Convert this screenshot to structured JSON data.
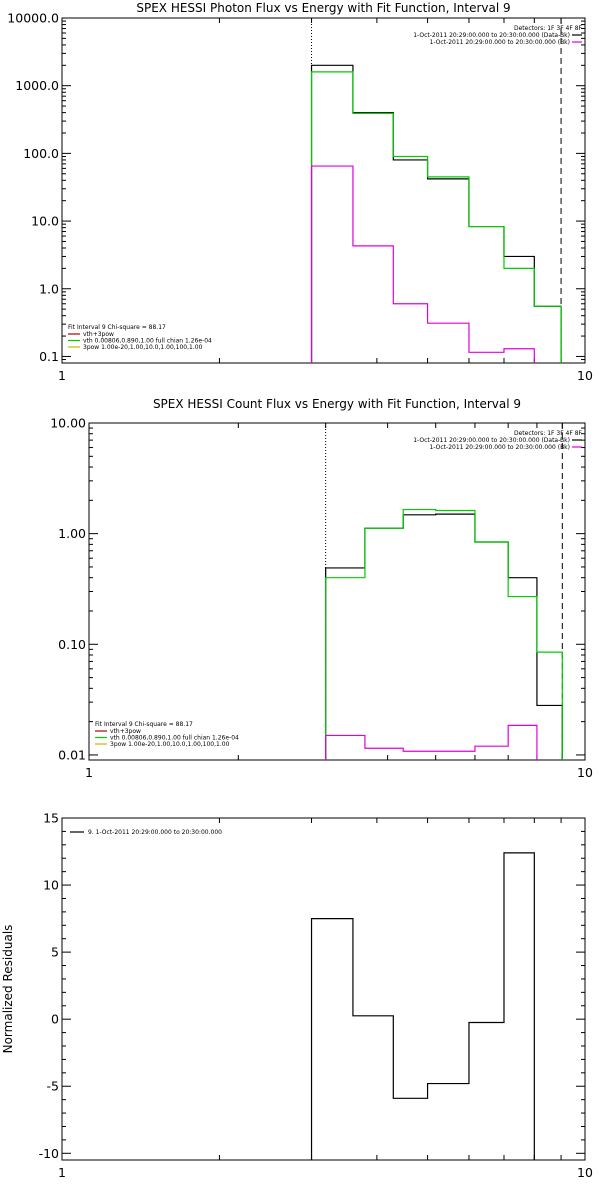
{
  "chart_data": [
    {
      "type": "line",
      "title": "SPEX HESSI Photon Flux vs Energy with Fit Function, Interval 9",
      "xlabel": "",
      "ylabel": "",
      "xscale": "log",
      "yscale": "log",
      "xlim": [
        1,
        10
      ],
      "ylim": [
        0.08,
        10000
      ],
      "xticks": [
        1,
        10
      ],
      "xtick_labels": [
        "1",
        "10"
      ],
      "yticks": [
        0.1,
        1,
        10,
        100,
        1000,
        10000
      ],
      "ytick_labels": [
        "0.1",
        "1.0",
        "10.0",
        "100.0",
        "1000.0",
        "10000.0"
      ],
      "vlines": [
        {
          "x": 3.0,
          "style": "dotted"
        },
        {
          "x": 9.0,
          "style": "dashed"
        }
      ],
      "legend_header": "Detectors: 1F 3F 4F 8F",
      "legend": [
        {
          "label": "1-Oct-2011 20:29:00.000 to 20:30:00.000 (Data-Bk)",
          "color": "#000000"
        },
        {
          "label": "1-Oct-2011 20:29:00.000 to 20:30:00.000 (Bk)",
          "color": "#e000e0"
        }
      ],
      "fit_header": "Fit Interval 9   Chi-square = 88.17",
      "fit_legend": [
        {
          "label": "vth+3pow",
          "color": "#b00000"
        },
        {
          "label": "vth 0.00806,0.890,1.00  full chian 1.26e-04",
          "color": "#00cc00"
        },
        {
          "label": "3pow 1.00e-20,1.00,10.0,1.00,100,1.00",
          "color": "#d4b000"
        }
      ],
      "edges": [
        3.0,
        3.6,
        4.3,
        5.0,
        6.0,
        7.0,
        8.0,
        9.0,
        10.0
      ],
      "series": [
        {
          "name": "1-Oct-2011 20:29:00.000 to 20:30:00.000 (Data-Bk)",
          "color": "#000000",
          "values": [
            2000,
            400,
            80,
            42,
            8.3,
            3.0,
            0.55
          ]
        },
        {
          "name": "vth 0.00806,0.890,1.00  full chian 1.26e-04",
          "color": "#00cc00",
          "values": [
            1600,
            390,
            90,
            45,
            8.3,
            2.0,
            0.55
          ]
        },
        {
          "name": "1-Oct-2011 20:29:00.000 to 20:30:00.000 (Bk)",
          "color": "#e000e0",
          "values": [
            65,
            4.3,
            0.6,
            0.31,
            0.115,
            0.13
          ]
        }
      ]
    },
    {
      "type": "line",
      "title": "SPEX HESSI Count Flux vs Energy with Fit Function, Interval 9",
      "xlabel": "",
      "ylabel": "",
      "xscale": "log",
      "yscale": "log",
      "xlim": [
        1,
        10
      ],
      "ylim": [
        0.009,
        10
      ],
      "xticks": [
        1,
        10
      ],
      "xtick_labels": [
        "1",
        "10"
      ],
      "yticks": [
        0.01,
        0.1,
        1,
        10
      ],
      "ytick_labels": [
        "0.01",
        "0.10",
        "1.00",
        "10.00"
      ],
      "vlines": [
        {
          "x": 3.0,
          "style": "dotted"
        },
        {
          "x": 9.0,
          "style": "dashed"
        }
      ],
      "legend_header": "Detectors: 1F 3F 4F 8F",
      "legend": [
        {
          "label": "1-Oct-2011 20:29:00.000 to 20:30:00.000 (Data-Bk)",
          "color": "#000000"
        },
        {
          "label": "1-Oct-2011 20:29:00.000 to 20:30:00.000 (Bk)",
          "color": "#e000e0"
        }
      ],
      "fit_header": "Fit Interval 9   Chi-square = 88.17",
      "fit_legend": [
        {
          "label": "vth+3pow",
          "color": "#b00000"
        },
        {
          "label": "vth 0.00806,0.890,1.00  full chian 1.26e-04",
          "color": "#00cc00"
        },
        {
          "label": "3pow 1.00e-20,1.00,10.0,1.00,100,1.00",
          "color": "#d4b000"
        }
      ],
      "edges": [
        3.0,
        3.6,
        4.3,
        5.0,
        6.0,
        7.0,
        8.0,
        9.0,
        10.0
      ],
      "series": [
        {
          "name": "1-Oct-2011 20:29:00.000 to 20:30:00.000 (Data-Bk)",
          "color": "#000000",
          "values": [
            0.49,
            1.12,
            1.48,
            1.5,
            0.84,
            0.4,
            0.028
          ]
        },
        {
          "name": "vth 0.00806,0.890,1.00  full chian 1.26e-04",
          "color": "#00cc00",
          "values": [
            0.4,
            1.12,
            1.65,
            1.62,
            0.84,
            0.27,
            0.085
          ]
        },
        {
          "name": "1-Oct-2011 20:29:00.000 to 20:30:00.000 (Bk)",
          "color": "#e000e0",
          "values": [
            0.015,
            0.0115,
            0.0108,
            0.0108,
            0.012,
            0.0185
          ]
        }
      ]
    },
    {
      "type": "line",
      "title": "",
      "xlabel": "",
      "ylabel": "Normalized Residuals",
      "xscale": "log",
      "yscale": "linear",
      "xlim": [
        1,
        10
      ],
      "ylim": [
        -10.5,
        15
      ],
      "xticks": [
        1,
        10
      ],
      "xtick_labels": [
        "1",
        "10"
      ],
      "yticks": [
        -10,
        -5,
        0,
        5,
        10,
        15
      ],
      "ytick_labels": [
        "-10",
        "-5",
        "0",
        "5",
        "10",
        "15"
      ],
      "legend": [
        {
          "label": "9.  1-Oct-2011 20:29:00.000 to 20:30:00.000",
          "color": "#000000"
        }
      ],
      "edges": [
        3.0,
        3.6,
        4.3,
        5.0,
        6.0,
        7.0,
        8.0,
        9.0
      ],
      "series": [
        {
          "name": "9.  1-Oct-2011 20:29:00.000 to 20:30:00.000",
          "color": "#000000",
          "values": [
            7.5,
            0.25,
            -5.9,
            -4.8,
            -0.25,
            12.4
          ]
        }
      ]
    }
  ]
}
